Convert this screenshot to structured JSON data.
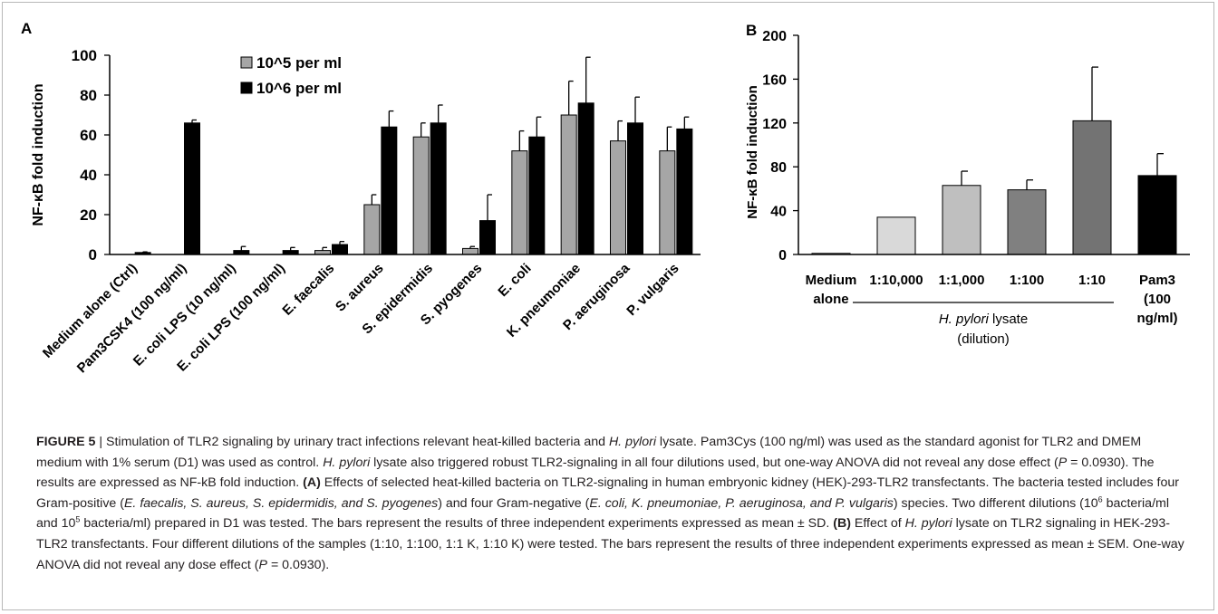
{
  "chart_data": [
    {
      "panel": "A",
      "type": "bar",
      "ylabel": "NF-κB fold induction",
      "ylim": [
        0,
        100
      ],
      "yticks": [
        0,
        20,
        40,
        60,
        80,
        100
      ],
      "categories": [
        "Medium alone (Ctrl)",
        "Pam3CSK4 (100 ng/ml)",
        "E. coli LPS (10 ng/ml)",
        "E. coli LPS (100 ng/ml)",
        "E. faecalis",
        "S. aureus",
        "S. epidermidis",
        "S. pyogenes",
        "E. coli",
        "K. pneumoniae",
        "P. aeruginosa",
        "P. vulgaris"
      ],
      "series": [
        {
          "name": "10^5 per ml",
          "color": "#a6a6a6",
          "values": [
            null,
            null,
            null,
            null,
            2,
            25,
            59,
            3,
            52,
            70,
            57,
            52
          ],
          "errors": [
            null,
            null,
            null,
            null,
            1.5,
            5,
            7,
            1,
            10,
            17,
            10,
            12
          ]
        },
        {
          "name": "10^6 per ml",
          "color": "#000000",
          "values": [
            1,
            66,
            2,
            2,
            5,
            64,
            66,
            17,
            59,
            76,
            66,
            63
          ],
          "errors": [
            0.3,
            1.5,
            2,
            1.5,
            1.5,
            8,
            9,
            13,
            10,
            23,
            13,
            6
          ]
        }
      ],
      "legend_position": "top-left"
    },
    {
      "panel": "B",
      "type": "bar",
      "ylabel": "NF-κB fold induction",
      "ylim": [
        0,
        200
      ],
      "yticks": [
        0,
        40,
        80,
        120,
        160,
        200
      ],
      "categories": [
        "Medium alone",
        "1:10,000",
        "1:1,000",
        "1:100",
        "1:10",
        "Pam3 (100 ng/ml)"
      ],
      "category_lines": [
        [
          "Medium",
          "alone"
        ],
        [
          "1:10,000"
        ],
        [
          "1:1,000"
        ],
        [
          "1:100"
        ],
        [
          "1:10"
        ],
        [
          "Pam3",
          "(100",
          "ng/ml)"
        ]
      ],
      "values": [
        1,
        34,
        63,
        59,
        122,
        72
      ],
      "errors": [
        0,
        0,
        13,
        9,
        49,
        20
      ],
      "colors": [
        "#ffffff",
        "#d9d9d9",
        "#bfbfbf",
        "#808080",
        "#737373",
        "#000000"
      ],
      "group_label_lines": [
        "H. pylori lysate",
        "(dilution)"
      ]
    }
  ],
  "panel_labels": {
    "a": "A",
    "b": "B"
  },
  "caption": {
    "figure_label": "FIGURE 5",
    "separator": " | ",
    "t1": "Stimulation of TLR2 signaling by urinary tract infections relevant heat-killed bacteria and ",
    "hp1": "H. pylori",
    "t2": " lysate. Pam3Cys (100 ng/ml) was used as the standard agonist for TLR2 and DMEM medium with 1% serum (D1) was used as control. ",
    "hp2": "H. pylori",
    "t3": " lysate also triggered robust TLR2-signaling in all four dilutions used, but one-way ANOVA did not reveal any dose effect (",
    "p1": "P",
    "t4": " = 0.0930). The results are expressed as NF-kB fold induction. ",
    "label_a": "(A)",
    "t5": " Effects of selected heat-killed bacteria on TLR2-signaling in human embryonic kidney (HEK)-293-TLR2 transfectants. The bacteria tested includes four Gram-positive (",
    "gram_pos": "E. faecalis, S. aureus, S. epidermidis, and S. pyogenes",
    "t6": ") and four Gram-negative (",
    "gram_neg": "E. coli, K. pneumoniae, P. aeruginosa, and P. vulgaris",
    "t7": ") species. Two different dilutions (10",
    "sup6": "6",
    "t8": " bacteria/ml and 10",
    "sup5": "5",
    "t9": " bacteria/ml) prepared in D1 was tested. The bars represent the results of three independent experiments expressed as mean ± SD. ",
    "label_b": "(B)",
    "t10": " Effect of ",
    "hp3": "H. pylori",
    "t11": " lysate on TLR2 signaling in HEK-293-TLR2 transfectants. Four different dilutions of the samples (1:10, 1:100, 1:1 K, 1:10 K) were tested. The bars represent the results of three independent experiments expressed as mean ± SEM. One-way ANOVA did not reveal any dose effect (",
    "p2": "P",
    "t12": " = 0.0930)."
  }
}
